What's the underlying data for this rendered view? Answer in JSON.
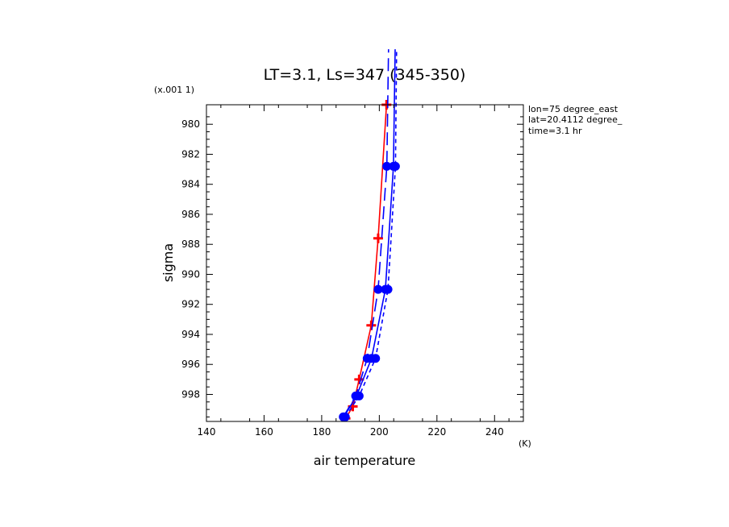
{
  "chart_data": {
    "type": "line",
    "title": "LT=3.1, Ls=347 (345-350)",
    "xlabel": "air temperature",
    "ylabel": "sigma",
    "x_unit": "(K)",
    "y_scale_note": "(x.001 1)",
    "xlim": [
      140,
      250
    ],
    "ylim": [
      999.8,
      978.7
    ],
    "x_ticks": [
      "140",
      "160",
      "180",
      "200",
      "220",
      "240"
    ],
    "y_ticks": [
      "980",
      "982",
      "984",
      "986",
      "988",
      "990",
      "992",
      "994",
      "996",
      "998"
    ],
    "y_tick_values": [
      980,
      982,
      984,
      986,
      988,
      990,
      992,
      994,
      996,
      998
    ],
    "grid": false,
    "annotations": [
      "lon=75 degree_east",
      "lat=20.4112 degree_",
      "time=3.1 hr"
    ],
    "series": [
      {
        "color": "#ff0000",
        "line": "solid",
        "marker": "plus",
        "x": [
          188.3,
          190.8,
          193.0,
          197.2,
          199.6,
          202.5
        ],
        "y": [
          999.6,
          998.8,
          997.0,
          993.4,
          987.6,
          978.7
        ]
      },
      {
        "color": "#0000ff",
        "line": "solid",
        "marker": "dot",
        "x": [
          187.7,
          192.1,
          197.3,
          202.1,
          204.9,
          205.5
        ],
        "y": [
          999.5,
          998.1,
          995.6,
          991.0,
          982.8,
          975.0
        ]
      },
      {
        "color": "#0000ff",
        "line": "long-dash",
        "marker": "dot",
        "x": [
          187.5,
          191.8,
          195.8,
          199.6,
          202.6,
          203.2
        ],
        "y": [
          999.5,
          998.1,
          995.6,
          991.0,
          982.8,
          975.0
        ]
      },
      {
        "color": "#0000ff",
        "line": "short-dash",
        "marker": "dot",
        "x": [
          188.2,
          193.0,
          198.7,
          203.0,
          205.6,
          206.0
        ],
        "y": [
          999.5,
          998.1,
          995.6,
          991.0,
          982.8,
          975.0
        ]
      }
    ]
  }
}
